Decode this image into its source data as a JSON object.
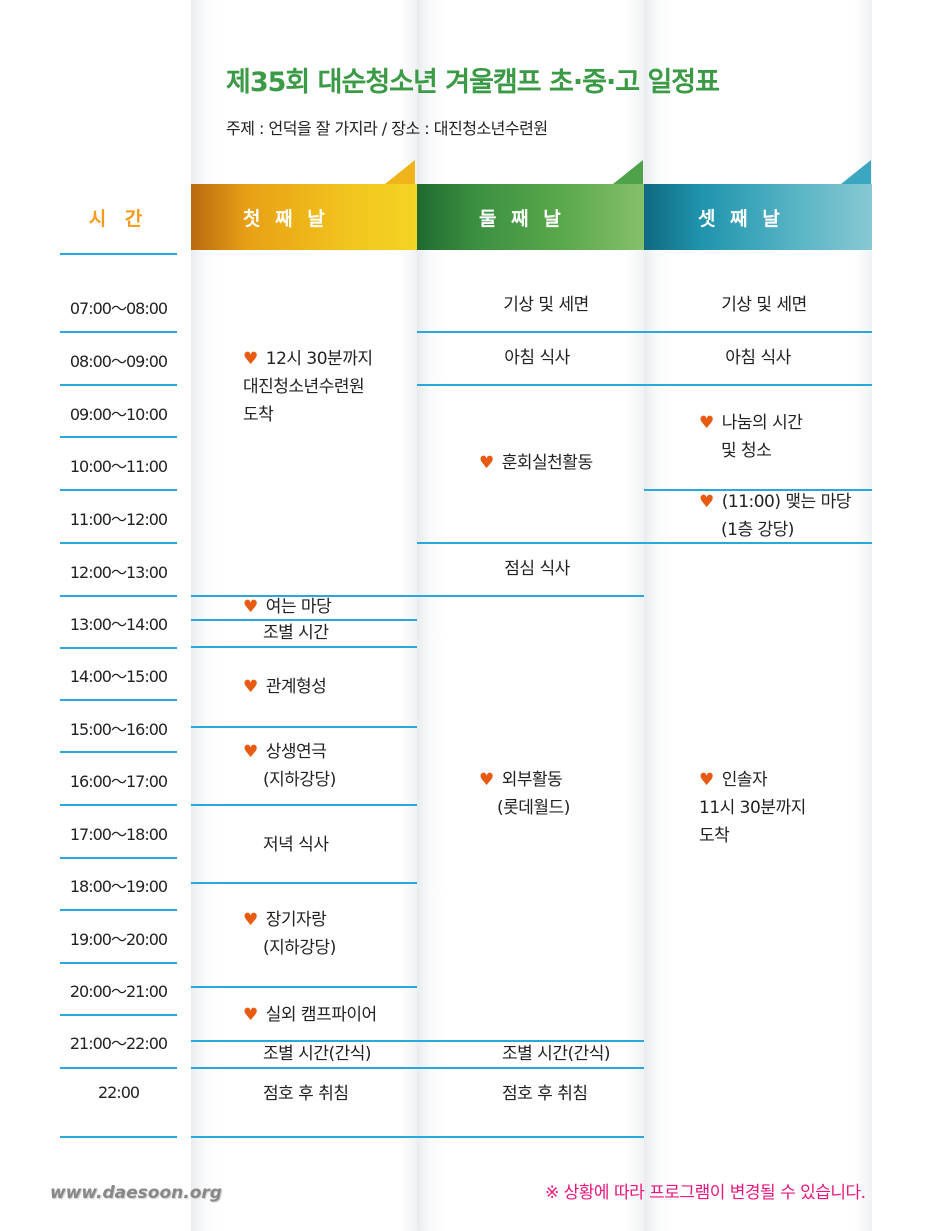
{
  "header": {
    "title": "제35회 대순청소년 겨울캠프 초·중·고 일정표",
    "subtitle": "주제 : 언덕을 잘 가지라  /  장소 : 대진청소년수련원"
  },
  "columns": {
    "time": "시 간",
    "day1": "첫 째 날",
    "day2": "둘 째 날",
    "day3": "셋 째 날"
  },
  "colors": {
    "day1": "#f0b41a",
    "day2": "#4ea24a",
    "day3": "#2a9fb8",
    "heart": "#e85a10",
    "line": "#2aa8de",
    "title": "#3a9a45",
    "note": "#e8177d"
  },
  "icons": {
    "bullet": "heart-icon",
    "heart": "♥"
  },
  "times": [
    "07:00～08:00",
    "08:00～09:00",
    "09:00～10:00",
    "10:00～11:00",
    "11:00～12:00",
    "12:00～13:00",
    "13:00～14:00",
    "14:00～15:00",
    "15:00～16:00",
    "16:00～17:00",
    "17:00～18:00",
    "18:00～19:00",
    "19:00～20:00",
    "20:00～21:00",
    "21:00～22:00",
    "22:00"
  ],
  "day1": {
    "arrival": [
      "12시 30분까지",
      "대진청소년수련원",
      "도착"
    ],
    "opening": "여는 마당",
    "group_time": "조별 시간",
    "relations": "관계형성",
    "play": [
      "상생연극",
      "(지하강당)"
    ],
    "dinner": "저녁 식사",
    "talent": [
      "장기자랑",
      "(지하강당)"
    ],
    "campfire": "실외 캠프파이어",
    "group_snack": "조별 시간(간식)",
    "rollcall": "점호 후 취침"
  },
  "day2": {
    "wake": "기상 및 세면",
    "breakfast": "아침 식사",
    "practice": "훈회실천활동",
    "lunch": "점심 식사",
    "outing": [
      "외부활동",
      "(롯데월드)"
    ],
    "group_snack": "조별 시간(간식)",
    "rollcall": "점호 후 취침"
  },
  "day3": {
    "wake": "기상 및 세면",
    "breakfast": "아침 식사",
    "sharing": [
      "나눔의 시간",
      "및 청소"
    ],
    "closing": [
      "(11:00) 맺는 마당",
      "(1층 강당)"
    ],
    "leader": [
      "인솔자",
      "11시 30분까지",
      "도착"
    ]
  },
  "footer": {
    "url": "www.daesoon.org",
    "note": "※ 상황에 따라 프로그램이 변경될 수 있습니다."
  }
}
